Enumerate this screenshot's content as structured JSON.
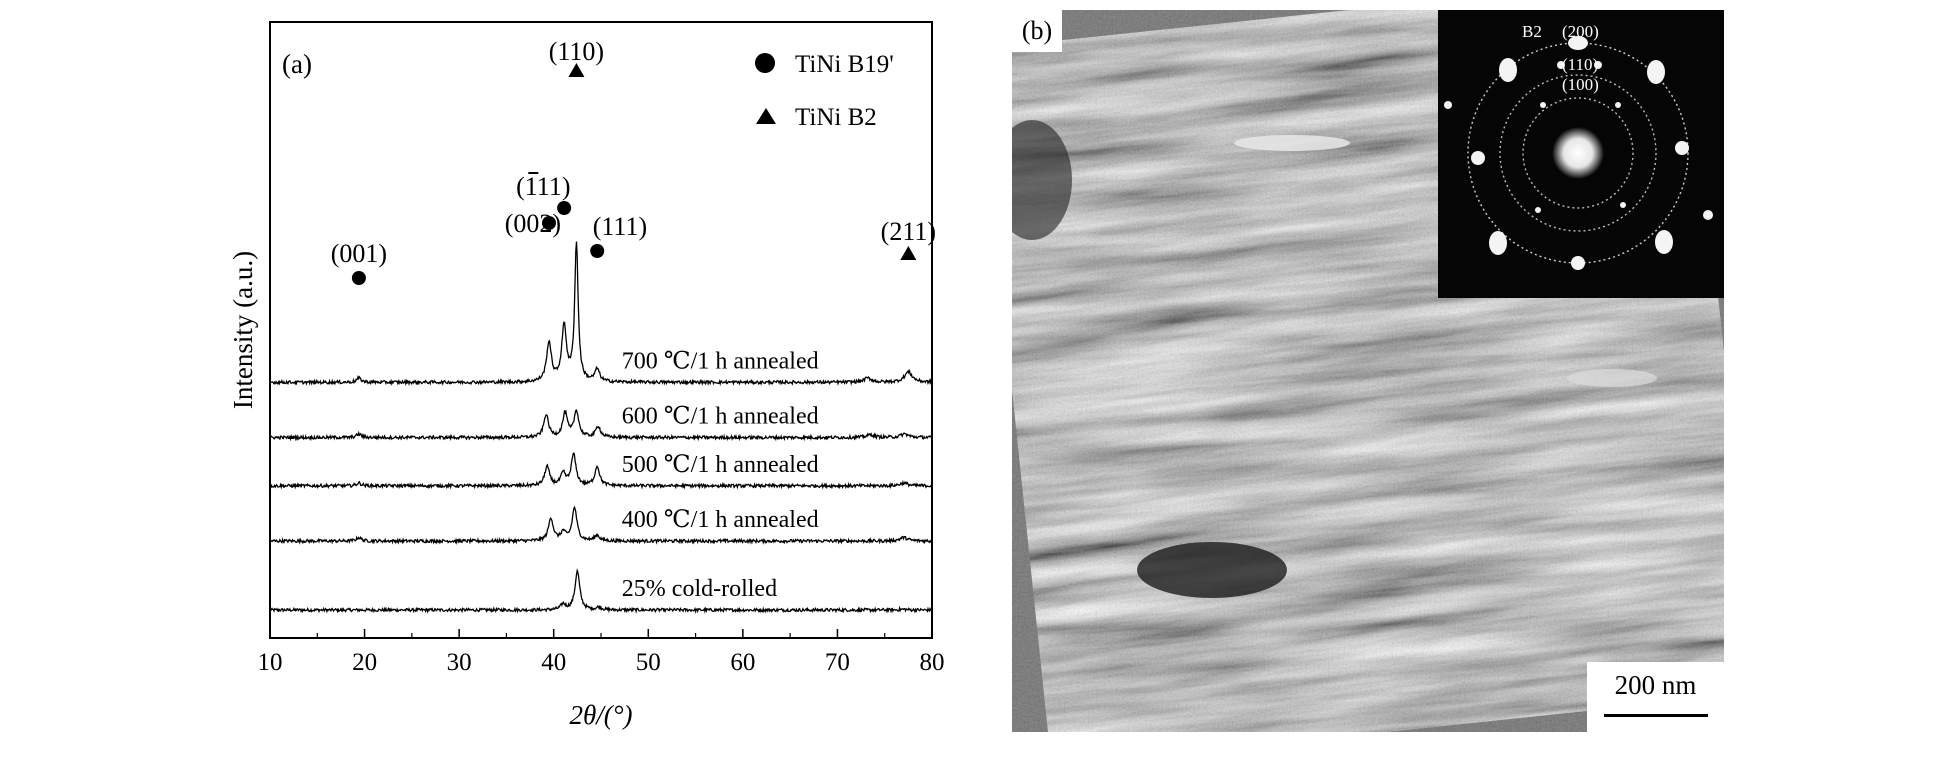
{
  "panel_a": {
    "label": "(a)",
    "legend": [
      {
        "marker": "circle",
        "label": "TiNi B19'"
      },
      {
        "marker": "triangle",
        "label": "TiNi B2"
      }
    ],
    "peak_labels": [
      {
        "text": "(001)",
        "x": 19.4,
        "curve": 3,
        "marker": "circle"
      },
      {
        "text": "(002)",
        "x": 39.5,
        "curve": 3,
        "marker": "circle"
      },
      {
        "text": "(111)",
        "x": 41.1,
        "curve": 3,
        "marker": "circle",
        "overbar_first_digit": true
      },
      {
        "text": "(110)",
        "x": 42.4,
        "curve": 3,
        "marker": "triangle"
      },
      {
        "text": "(111)",
        "x": 44.6,
        "curve": 3,
        "marker": "circle"
      },
      {
        "text": "(211)",
        "x": 77.5,
        "curve": 3,
        "marker": "triangle"
      }
    ]
  },
  "panel_b": {
    "label": "(b)",
    "inset_labels": {
      "phase": "B2",
      "r200": "(200)",
      "r110": "(110)",
      "r100": "(100)"
    },
    "scale_bar": "200 nm"
  },
  "chart_data": {
    "type": "line",
    "title": "",
    "xlabel": "2θ/(°)",
    "ylabel": "Intensity (a.u.)",
    "xlim": [
      10,
      80
    ],
    "xticks": [
      10,
      20,
      30,
      40,
      50,
      60,
      70,
      80
    ],
    "grid": false,
    "legend_position": "top-right",
    "y_ticks_shown": false,
    "series": [
      {
        "name": "25% cold-rolled",
        "baseline": 0.0,
        "peaks": [
          {
            "x": 41.0,
            "h": 0.08
          },
          {
            "x": 42.5,
            "h": 0.56
          },
          {
            "x": 44.8,
            "h": 0.04
          },
          {
            "x": 77.0,
            "h": 0.01
          }
        ]
      },
      {
        "name": "400 ℃/1 h annealed",
        "baseline": 1.0,
        "peaks": [
          {
            "x": 19.4,
            "h": 0.05
          },
          {
            "x": 39.7,
            "h": 0.33
          },
          {
            "x": 41.0,
            "h": 0.12
          },
          {
            "x": 42.2,
            "h": 0.48
          },
          {
            "x": 44.6,
            "h": 0.08
          },
          {
            "x": 77.0,
            "h": 0.05
          }
        ]
      },
      {
        "name": "500 ℃/1 h annealed",
        "baseline": 1.8,
        "peaks": [
          {
            "x": 19.4,
            "h": 0.04
          },
          {
            "x": 39.3,
            "h": 0.28
          },
          {
            "x": 41.0,
            "h": 0.17
          },
          {
            "x": 42.1,
            "h": 0.45
          },
          {
            "x": 44.6,
            "h": 0.28
          },
          {
            "x": 77.0,
            "h": 0.04
          }
        ]
      },
      {
        "name": "600 ℃/1 h annealed",
        "baseline": 2.5,
        "peaks": [
          {
            "x": 19.4,
            "h": 0.05
          },
          {
            "x": 39.2,
            "h": 0.33
          },
          {
            "x": 41.2,
            "h": 0.35
          },
          {
            "x": 42.4,
            "h": 0.38
          },
          {
            "x": 44.7,
            "h": 0.16
          },
          {
            "x": 73.5,
            "h": 0.04
          },
          {
            "x": 77.1,
            "h": 0.05
          }
        ]
      },
      {
        "name": "700 ℃/1 h annealed",
        "baseline": 3.3,
        "peaks": [
          {
            "x": 19.4,
            "h": 0.06
          },
          {
            "x": 39.5,
            "h": 0.57
          },
          {
            "x": 41.1,
            "h": 0.8
          },
          {
            "x": 42.4,
            "h": 2.0
          },
          {
            "x": 44.6,
            "h": 0.18
          },
          {
            "x": 73.2,
            "h": 0.06
          },
          {
            "x": 77.5,
            "h": 0.15
          }
        ]
      }
    ]
  }
}
